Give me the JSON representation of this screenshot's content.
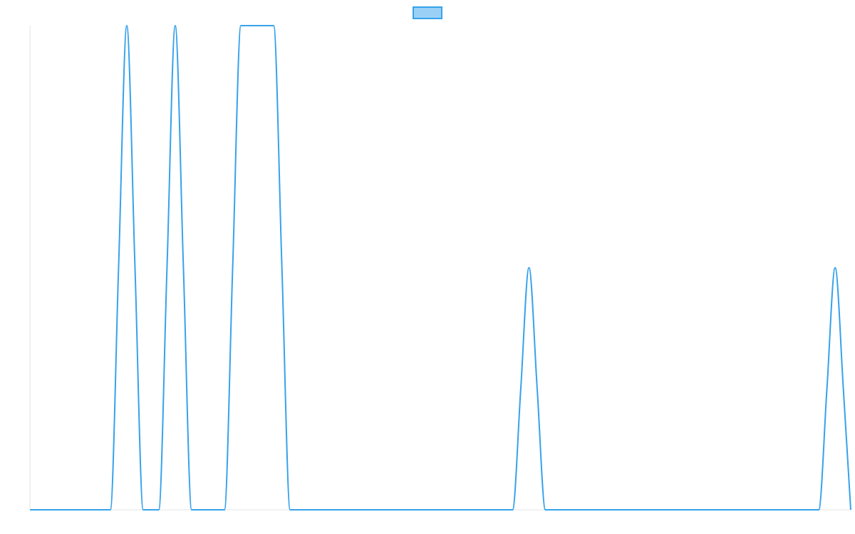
{
  "chart_data": {
    "type": "line",
    "title": "",
    "xlabel": "",
    "ylabel": "",
    "xlim": [
      0,
      100
    ],
    "ylim": [
      0,
      1
    ],
    "grid": false,
    "legend": {
      "placement": "top-center",
      "entries": [
        {
          "label": ""
        }
      ]
    },
    "colors": {
      "line": "#36a2eb",
      "fill": "#9ad0f5",
      "axis": "#e6e6e6"
    },
    "series": [
      {
        "name": "",
        "x": [
          0,
          9.8,
          10.8,
          11.8,
          12.8,
          13.8,
          15.7,
          16.7,
          17.7,
          18.7,
          19.7,
          23.7,
          24.7,
          25.7,
          26.7,
          27.7,
          28.7,
          29.7,
          30.7,
          31.7,
          58.8,
          59.8,
          60.8,
          61.8,
          62.8,
          96.1,
          97.1,
          98.1,
          99.1,
          100
        ],
        "y": [
          0,
          0,
          0.5,
          1,
          0.5,
          0,
          0,
          0.5,
          1,
          0.5,
          0,
          0,
          0.5,
          1,
          1,
          1,
          1,
          1,
          0.5,
          0,
          0,
          0.25,
          0.5,
          0.25,
          0,
          0,
          0.25,
          0.5,
          0.25,
          0
        ]
      }
    ]
  }
}
